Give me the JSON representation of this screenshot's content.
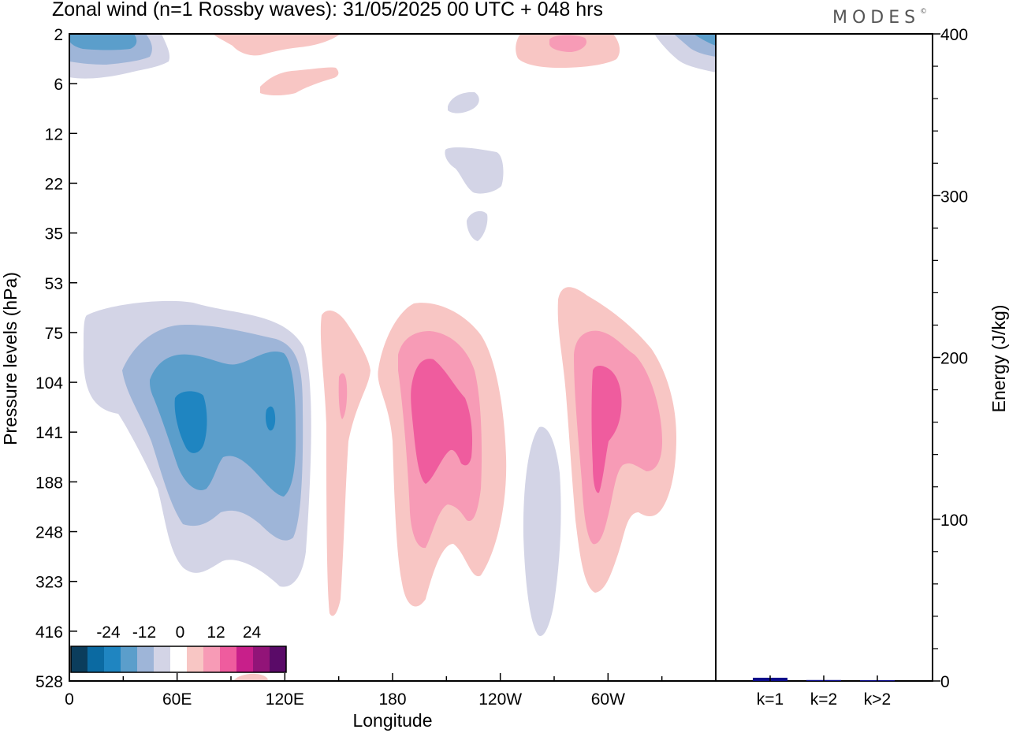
{
  "header": {
    "title": "Zonal wind (n=1 Rossby waves):  31/05/2025  00 UTC  + 048 hrs",
    "brand": "MODES",
    "brand_mark": "©"
  },
  "chart_data": [
    {
      "type": "heatmap",
      "name": "Zonal wind cross-section",
      "xlabel": "Longitude",
      "ylabel": "Pressure levels (hPa)",
      "x_ticks": [
        "0",
        "60E",
        "120E",
        "180",
        "120W",
        "60W"
      ],
      "x_tick_values": [
        0,
        60,
        120,
        180,
        240,
        300
      ],
      "xlim": [
        0,
        360
      ],
      "y_ticks": [
        "2",
        "6",
        "12",
        "22",
        "35",
        "53",
        "75",
        "104",
        "141",
        "188",
        "248",
        "323",
        "416",
        "528"
      ],
      "y_scale": "categorical pressure levels, top to bottom",
      "colorbar": {
        "labels": [
          "-24",
          "-12",
          "0",
          "12",
          "24"
        ],
        "label_values": [
          -24,
          -12,
          0,
          12,
          24
        ],
        "colors": [
          "#0b3d5c",
          "#0b6aa2",
          "#1f85c1",
          "#5b9ecb",
          "#9eb5d8",
          "#d3d4e6",
          "#ffffff",
          "#f8c6c4",
          "#f79bb6",
          "#ef5c9e",
          "#c81f8a",
          "#921478",
          "#5a0b68"
        ]
      },
      "features": [
        {
          "sign": "negative",
          "longitude_range": [
            3,
            130
          ],
          "levels": "53-323",
          "min": -18
        },
        {
          "sign": "positive",
          "longitude_range": [
            140,
            168
          ],
          "levels": "75-416",
          "max": 6
        },
        {
          "sign": "positive",
          "longitude_range": [
            172,
            240
          ],
          "levels": "53-323",
          "max": 12
        },
        {
          "sign": "negative",
          "longitude_range": [
            255,
            275
          ],
          "levels": "141-416",
          "min": -3
        },
        {
          "sign": "positive",
          "longitude_range": [
            272,
            338
          ],
          "levels": "53-323",
          "max": 12
        }
      ]
    },
    {
      "type": "bar",
      "name": "Energy by zonal wavenumber",
      "categories": [
        "k=1",
        "k=2",
        "k>2"
      ],
      "values": [
        2,
        0.6,
        0.5
      ],
      "ylabel": "Energy (J/kg)",
      "ylim": [
        0,
        400
      ],
      "y_ticks": [
        "0",
        "100",
        "200",
        "300",
        "400"
      ],
      "y_tick_values": [
        0,
        100,
        200,
        300,
        400
      ],
      "bar_color": "#0a0a8a"
    }
  ]
}
